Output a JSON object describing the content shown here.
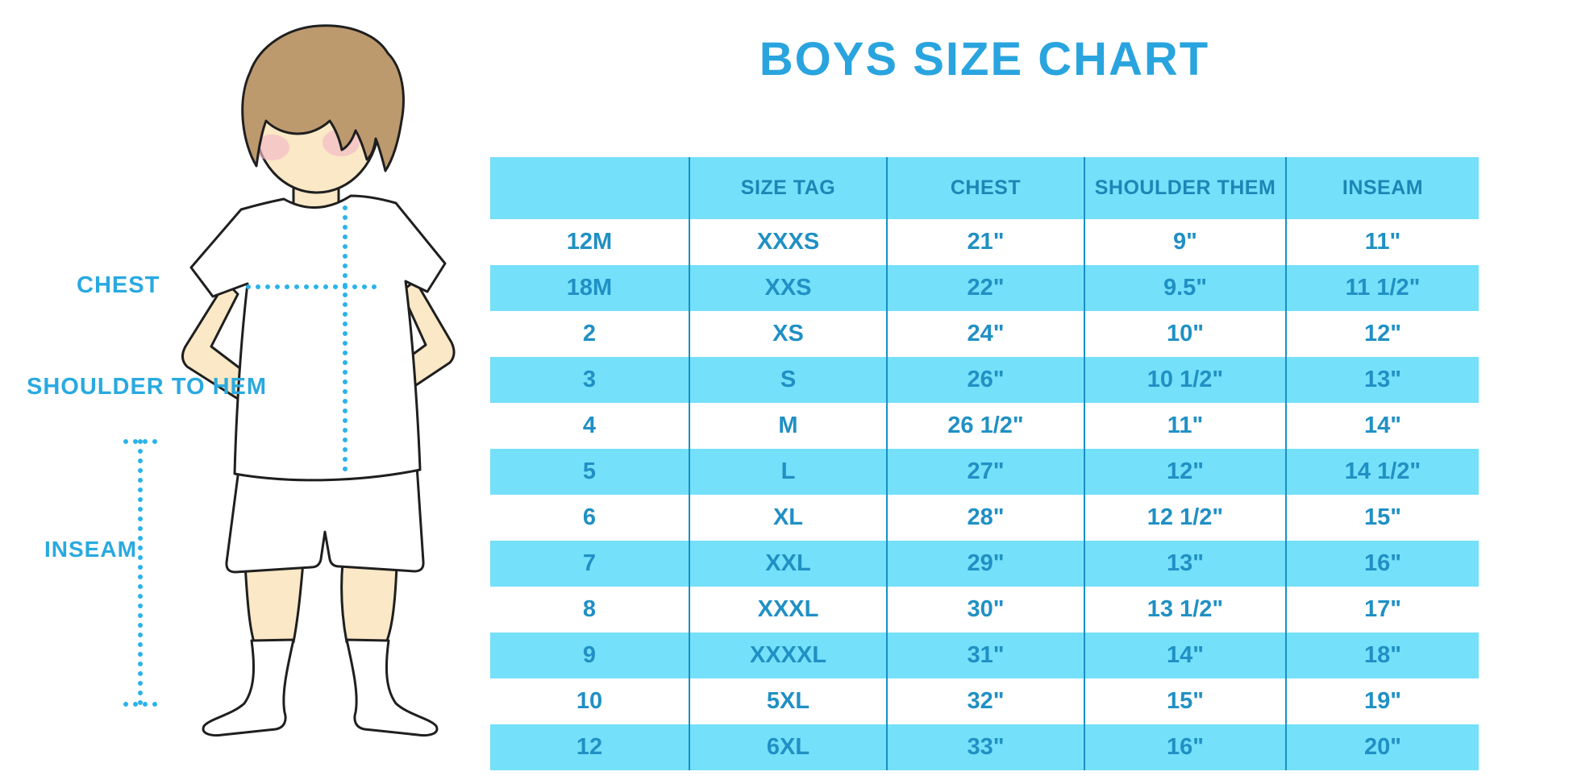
{
  "chart_data": {
    "type": "table",
    "title": "BOYS SIZE CHART",
    "columns": [
      "",
      "SIZE TAG",
      "CHEST",
      "SHOULDER THEM",
      "INSEAM"
    ],
    "rows": [
      [
        "12M",
        "XXXS",
        "21\"",
        "9\"",
        "11\""
      ],
      [
        "18M",
        "XXS",
        "22\"",
        "9.5\"",
        "11 1/2\""
      ],
      [
        "2",
        "XS",
        "24\"",
        "10\"",
        "12\""
      ],
      [
        "3",
        "S",
        "26\"",
        "10 1/2\"",
        "13\""
      ],
      [
        "4",
        "M",
        "26 1/2\"",
        "11\"",
        "14\""
      ],
      [
        "5",
        "L",
        "27\"",
        "12\"",
        "14 1/2\""
      ],
      [
        "6",
        "XL",
        "28\"",
        "12 1/2\"",
        "15\""
      ],
      [
        "7",
        "XXL",
        "29\"",
        "13\"",
        "16\""
      ],
      [
        "8",
        "XXXL",
        "30\"",
        "13 1/2\"",
        "17\""
      ],
      [
        "9",
        "XXXXL",
        "31\"",
        "14\"",
        "18\""
      ],
      [
        "10",
        "5XL",
        "32\"",
        "15\"",
        "19\""
      ],
      [
        "12",
        "6XL",
        "33\"",
        "16\"",
        "20\""
      ]
    ]
  },
  "illustration": {
    "labels": [
      "CHEST",
      "SHOULDER TO HEM",
      "INSEAM"
    ]
  },
  "colors": {
    "title_blue": "#29A4DE",
    "label_blue": "#29A9E0",
    "band_cyan": "#74E0FA",
    "header_text": "#1D86B6",
    "cell_text": "#2090C4",
    "divider": "#1990C4",
    "dotted_line": "#2AB3E8",
    "hair_brown": "#BC9A6E",
    "skin": "#FAE8C6",
    "blush": "#F2B9C6",
    "outline": "#1F1F1F"
  }
}
